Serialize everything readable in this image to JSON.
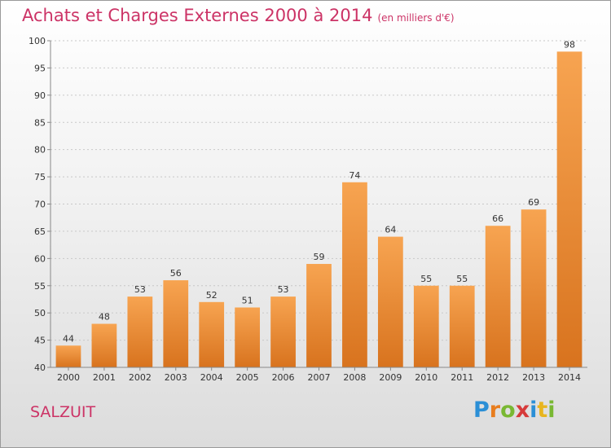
{
  "title": "Achats et Charges Externes 2000 à 2014",
  "unit": "(en milliers d'€)",
  "commune": "SALZUIT",
  "logo": "Proxiti",
  "colors": {
    "title": "#cc3366",
    "bar_light": "#f7a451",
    "bar_dark": "#d8731e"
  },
  "chart_data": {
    "type": "bar",
    "categories": [
      "2000",
      "2001",
      "2002",
      "2003",
      "2004",
      "2005",
      "2006",
      "2007",
      "2008",
      "2009",
      "2010",
      "2011",
      "2012",
      "2013",
      "2014"
    ],
    "values": [
      44,
      48,
      53,
      56,
      52,
      51,
      53,
      59,
      74,
      64,
      55,
      55,
      66,
      69,
      98
    ],
    "ylim": [
      40,
      100
    ],
    "yticks": [
      40,
      45,
      50,
      55,
      60,
      65,
      70,
      75,
      80,
      85,
      90,
      95,
      100
    ],
    "grid": true,
    "legend": "none"
  }
}
